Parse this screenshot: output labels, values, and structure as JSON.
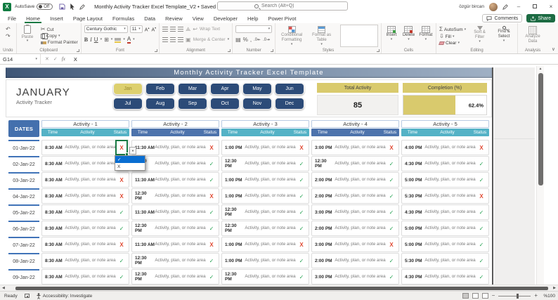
{
  "titlebar": {
    "autosave_label": "AutoSave",
    "autosave_state": "Off",
    "doc_title": "Monthly Activity Tracker Excel Template_V2 • Saved",
    "search_placeholder": "Search (Alt+Q)",
    "user_name": "özgür bircan"
  },
  "ribbon": {
    "tabs": [
      "File",
      "Home",
      "Insert",
      "Page Layout",
      "Formulas",
      "Data",
      "Review",
      "View",
      "Developer",
      "Help",
      "Power Pivot"
    ],
    "active_tab": "Home",
    "comments": "Comments",
    "share": "Share",
    "undo_label": "Undo",
    "clipboard": {
      "label": "Clipboard",
      "paste": "Paste",
      "cut": "Cut",
      "copy": "Copy",
      "format_painter": "Format Painter"
    },
    "font": {
      "label": "Font",
      "name": "Century Gothic",
      "size": "11"
    },
    "alignment": {
      "label": "Alignment",
      "wrap": "Wrap Text",
      "merge": "Merge & Center"
    },
    "number_label": "Number",
    "styles": {
      "label": "Styles",
      "conditional": "Conditional Formatting",
      "format_table": "Format as Table"
    },
    "cells": {
      "label": "Cells",
      "insert": "Insert",
      "delete": "Delete",
      "format": "Format"
    },
    "editing": {
      "label": "Editing",
      "autosum": "AutoSum",
      "fill": "Fill",
      "clear": "Clear",
      "sort": "Sort & Filter",
      "find": "Find & Select"
    },
    "analysis": {
      "label": "Analysis",
      "analyze": "Analyze Data"
    }
  },
  "formula_bar": {
    "name_box": "G14",
    "value": "X"
  },
  "sheet": {
    "banner_title": "Monthly Activity Tracker Excel Template",
    "month_title": "JANUARY",
    "month_subtitle": "Activity Tracker",
    "months": [
      "Jan",
      "Feb",
      "Mar",
      "Apr",
      "May",
      "Jun",
      "Jul",
      "Aug",
      "Sep",
      "Oct",
      "Nov",
      "Dec"
    ],
    "selected_month": "Jan",
    "total": {
      "label": "Total Activity",
      "value": "85"
    },
    "completion": {
      "label": "Completion (%)",
      "value": "62.4%",
      "percent": 62.4
    },
    "table": {
      "dates_header": "DATES",
      "groups": [
        "Activity - 1",
        "Activity - 2",
        "Activity - 3",
        "Activity - 4",
        "Activity - 5"
      ],
      "sub_headers": [
        "Time",
        "Activity",
        "Status"
      ],
      "note_text": "Activity, plan, or note area",
      "rows": [
        {
          "date": "01-Jan-22",
          "times": [
            "8:30 AM",
            "11:30 AM",
            "1:00 PM",
            "3:00 PM",
            "4:00 PM"
          ],
          "status": [
            "X",
            "X",
            "X",
            "X",
            "X"
          ]
        },
        {
          "date": "02-Jan-22",
          "times": [
            "8:30 AM",
            "12:30 PM",
            "12:30 PM",
            "12:30 PM",
            "4:30 PM"
          ],
          "status": [
            "✓",
            "✓",
            "✓",
            "✓",
            "✓"
          ]
        },
        {
          "date": "03-Jan-22",
          "times": [
            "8:30 AM",
            "11:30 AM",
            "1:00 PM",
            "2:00 PM",
            "5:00 PM"
          ],
          "status": [
            "X",
            "✓",
            "✓",
            "✓",
            "✓"
          ]
        },
        {
          "date": "04-Jan-22",
          "times": [
            "8:30 AM",
            "12:30 PM",
            "1:00 PM",
            "2:00 PM",
            "5:30 PM"
          ],
          "status": [
            "X",
            "X",
            "✓",
            "✓",
            "X"
          ]
        },
        {
          "date": "05-Jan-22",
          "times": [
            "8:30 AM",
            "11:30 AM",
            "12:30 PM",
            "3:00 PM",
            "4:30 PM"
          ],
          "status": [
            "✓",
            "✓",
            "✓",
            "✓",
            "✓"
          ]
        },
        {
          "date": "06-Jan-22",
          "times": [
            "8:30 AM",
            "12:30 PM",
            "12:30 PM",
            "2:00 PM",
            "5:00 PM"
          ],
          "status": [
            "✓",
            "✓",
            "✓",
            "✓",
            "✓"
          ]
        },
        {
          "date": "07-Jan-22",
          "times": [
            "8:30 AM",
            "11:30 AM",
            "1:00 PM",
            "3:00 PM",
            "5:00 PM"
          ],
          "status": [
            "X",
            "X",
            "X",
            "X",
            "✓"
          ]
        },
        {
          "date": "08-Jan-22",
          "times": [
            "8:30 AM",
            "12:30 PM",
            "1:00 PM",
            "2:00 PM",
            "5:30 PM"
          ],
          "status": [
            "✓",
            "✓",
            "✓",
            "✓",
            "✓"
          ]
        },
        {
          "date": "09-Jan-22",
          "times": [
            "8:30 AM",
            "12:30 PM",
            "12:30 PM",
            "3:00 PM",
            "4:30 PM"
          ],
          "status": [
            "✓",
            "✓",
            "✓",
            "✓",
            "✓"
          ]
        }
      ],
      "selected_cell": {
        "row": 0,
        "group": 0
      },
      "dropdown_options": [
        "✓",
        "X"
      ]
    }
  },
  "statusbar": {
    "ready": "Ready",
    "accessibility": "Accessibility: Investigate",
    "zoom": "%100"
  },
  "colors": {
    "excel_green": "#107c41",
    "share_green": "#1d6b43",
    "banner_left": "#3f5676",
    "banner_right": "#9fb0c4",
    "month_button": "#2c4b78",
    "selected_month_bg": "#ddd06f",
    "gold_header": "#d9ca6d",
    "dates_blue": "#4470ad",
    "teal_strip": "#54b2c6",
    "steel_strip": "#4d73ac",
    "check_green": "#27a253",
    "x_red": "#e04a33",
    "selection_border": "#1a7a44",
    "dropdown_highlight": "#0a6ed1"
  }
}
